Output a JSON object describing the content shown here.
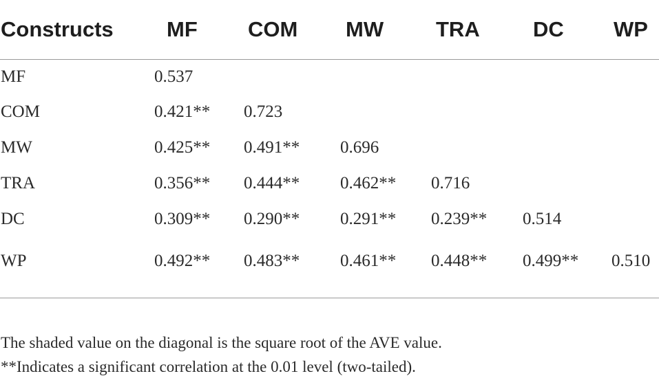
{
  "table": {
    "headers": [
      "Constructs",
      "MF",
      "COM",
      "MW",
      "TRA",
      "DC",
      "WP"
    ],
    "rows": [
      {
        "label": "MF",
        "cells": [
          "0.537",
          "",
          "",
          "",
          "",
          ""
        ]
      },
      {
        "label": "COM",
        "cells": [
          "0.421**",
          "0.723",
          "",
          "",
          "",
          ""
        ]
      },
      {
        "label": "MW",
        "cells": [
          "0.425**",
          "0.491**",
          "0.696",
          "",
          "",
          ""
        ]
      },
      {
        "label": "TRA",
        "cells": [
          "0.356**",
          "0.444**",
          "0.462**",
          "0.716",
          "",
          ""
        ]
      },
      {
        "label": "DC",
        "cells": [
          "0.309**",
          "0.290**",
          "0.291**",
          "0.239**",
          "0.514",
          ""
        ]
      },
      {
        "label": "WP",
        "cells": [
          "0.492**",
          "0.483**",
          "0.461**",
          "0.448**",
          "0.499**",
          "0.510"
        ]
      }
    ]
  },
  "notes": {
    "line1": "The shaded value on the diagonal is the square root of the AVE value.",
    "line2": "**Indicates a significant correlation at the 0.01 level (two-tailed)."
  }
}
